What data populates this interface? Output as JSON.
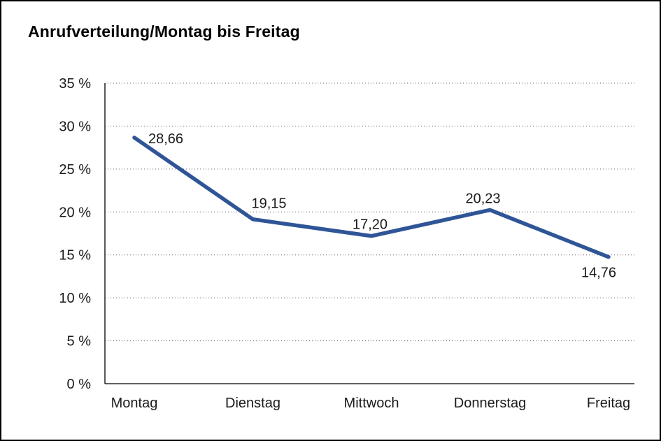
{
  "title": "Anrufverteilung/Montag bis Freitag",
  "colors": {
    "line": "#2F5597",
    "axis": "#000000",
    "grid": "#666666",
    "background": "#FFFFFF",
    "border": "#000000"
  },
  "chart_data": {
    "type": "line",
    "title": "Anrufverteilung/Montag bis Freitag",
    "categories": [
      "Montag",
      "Dienstag",
      "Mittwoch",
      "Donnerstag",
      "Freitag"
    ],
    "values": [
      28.66,
      19.15,
      17.2,
      20.23,
      14.76
    ],
    "value_labels": [
      "28,66",
      "19,15",
      "17,20",
      "20,23",
      "14,76"
    ],
    "xlabel": "",
    "ylabel": "",
    "ylim": [
      0,
      35
    ],
    "y_tick_step": 5,
    "y_tick_labels": [
      "0 %",
      "5 %",
      "10 %",
      "15 %",
      "20 %",
      "25 %",
      "30 %",
      "35 %"
    ],
    "grid": "horizontal-dotted",
    "legend": "none",
    "series_color": "#2F5597"
  }
}
